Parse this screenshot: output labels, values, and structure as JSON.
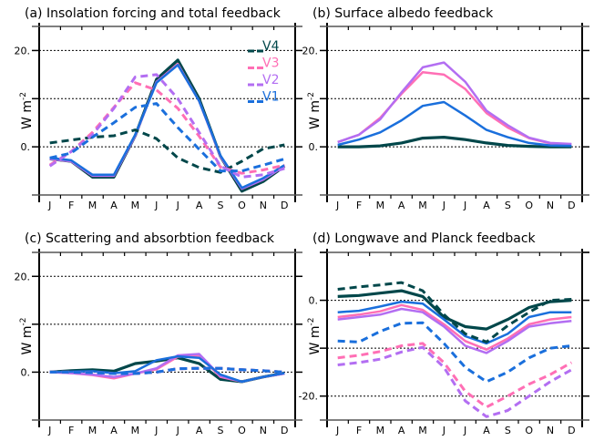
{
  "figure": {
    "months": [
      "J",
      "F",
      "M",
      "A",
      "M",
      "J",
      "J",
      "A",
      "S",
      "O",
      "N",
      "D"
    ],
    "ylabel": "W m",
    "ylabel_sup": "-2",
    "colors": {
      "V4": "#00474a",
      "V3": "#ff6fb5",
      "V2": "#b36ef2",
      "V1": "#1a6fdc"
    }
  },
  "chart_data": [
    {
      "type": "line",
      "panel": "a",
      "title": "(a) Insolation forcing and total feedback",
      "xlabel": "",
      "ylabel": "W m-2",
      "categories": [
        "J",
        "F",
        "M",
        "A",
        "M",
        "J",
        "J",
        "A",
        "S",
        "O",
        "N",
        "D"
      ],
      "ylim": [
        -10,
        25
      ],
      "yticks": [
        0,
        20
      ],
      "ytick_labels": [
        "0.",
        "20."
      ],
      "gridlines": [
        0,
        10,
        20
      ],
      "legend": {
        "placement": "top-right",
        "entries": [
          "V4",
          "V3",
          "V2",
          "V1"
        ]
      },
      "series": [
        {
          "name": "V4 solid",
          "legend": "V4",
          "style": "solid",
          "values": [
            -2.5,
            -3,
            -6.3,
            -6.3,
            2.3,
            14,
            18,
            10,
            -2,
            -9.2,
            -7.2,
            -4
          ]
        },
        {
          "name": "V3 solid",
          "legend": "V3",
          "style": "solid",
          "values": [
            -2.5,
            -3,
            -6,
            -6,
            2.3,
            13.5,
            17.2,
            9.5,
            -2,
            -8.7,
            -6.8,
            -4
          ]
        },
        {
          "name": "V2 solid",
          "legend": "V2",
          "style": "solid",
          "values": [
            -2.5,
            -3,
            -6,
            -6,
            2.3,
            13.5,
            17,
            9.5,
            -2,
            -8.7,
            -6.8,
            -4
          ]
        },
        {
          "name": "V1 solid",
          "legend": "V1",
          "style": "solid",
          "values": [
            -2.3,
            -2.8,
            -5.8,
            -5.8,
            2.5,
            13.3,
            17,
            9.5,
            -1.8,
            -8.5,
            -6.5,
            -3.8
          ]
        },
        {
          "name": "V4 dashed",
          "legend": "V4",
          "style": "dashed",
          "values": [
            0.8,
            1.4,
            2,
            2.3,
            3.5,
            1.7,
            -2.3,
            -4.3,
            -5.3,
            -3,
            -0.4,
            0.4
          ]
        },
        {
          "name": "V3 dashed",
          "legend": "V3",
          "style": "dashed",
          "values": [
            -3.8,
            -1,
            3,
            8.2,
            13.3,
            11.8,
            8,
            2.2,
            -4.2,
            -5.5,
            -4.8,
            -3.8
          ]
        },
        {
          "name": "V2 dashed",
          "legend": "V2",
          "style": "dashed",
          "values": [
            -4,
            -1,
            2.5,
            8,
            14.5,
            15,
            10,
            3,
            -4,
            -6.3,
            -5.8,
            -4.5
          ]
        },
        {
          "name": "V1 dashed",
          "legend": "V1",
          "style": "dashed",
          "values": [
            -2.3,
            -1.3,
            2,
            5,
            8.2,
            9,
            4,
            -0.5,
            -5,
            -5,
            -3.8,
            -2.5
          ]
        }
      ]
    },
    {
      "type": "line",
      "panel": "b",
      "title": "(b) Surface albedo feedback",
      "xlabel": "",
      "ylabel": "W m-2",
      "categories": [
        "J",
        "F",
        "M",
        "A",
        "M",
        "J",
        "J",
        "A",
        "S",
        "O",
        "N",
        "D"
      ],
      "ylim": [
        -10,
        25
      ],
      "yticks": [
        0,
        20
      ],
      "ytick_labels": [
        "0.",
        "20."
      ],
      "gridlines": [
        0,
        10,
        20
      ],
      "series": [
        {
          "name": "V4",
          "legend": "V4",
          "style": "solid",
          "values": [
            0,
            0,
            0.2,
            0.8,
            1.8,
            2,
            1.5,
            0.8,
            0.3,
            0.1,
            0,
            0
          ]
        },
        {
          "name": "V3",
          "legend": "V3",
          "style": "solid",
          "values": [
            1,
            2.5,
            6,
            11,
            15.5,
            15,
            12,
            7,
            4,
            1.8,
            0.7,
            0.5
          ]
        },
        {
          "name": "V2",
          "legend": "V2",
          "style": "solid",
          "values": [
            1,
            2.5,
            5.7,
            11.3,
            16.5,
            17.5,
            13.5,
            7.5,
            4.5,
            1.9,
            0.8,
            0.6
          ]
        },
        {
          "name": "V1",
          "legend": "V1",
          "style": "solid",
          "values": [
            0.4,
            1.5,
            3,
            5.5,
            8.5,
            9.3,
            6.5,
            3.5,
            2,
            0.8,
            0.3,
            0.2
          ]
        }
      ]
    },
    {
      "type": "line",
      "panel": "c",
      "title": "(c) Scattering and absorbtion feedback",
      "xlabel": "",
      "ylabel": "W m-2",
      "categories": [
        "J",
        "F",
        "M",
        "A",
        "M",
        "J",
        "J",
        "A",
        "S",
        "O",
        "N",
        "D"
      ],
      "ylim": [
        -10,
        25
      ],
      "yticks": [
        0,
        20
      ],
      "ytick_labels": [
        "0.",
        "20."
      ],
      "gridlines": [
        0,
        10,
        20
      ],
      "series": [
        {
          "name": "V4 solid",
          "legend": "V4",
          "style": "solid",
          "values": [
            0,
            0.3,
            0.5,
            0.2,
            1.8,
            2.3,
            3,
            1.8,
            -1.5,
            -2,
            -1,
            -0.2
          ]
        },
        {
          "name": "V3 solid",
          "legend": "V3",
          "style": "solid",
          "values": [
            0,
            -0.2,
            -0.6,
            -1.3,
            -0.3,
            0.6,
            3.2,
            3.5,
            -1,
            -2,
            -1,
            -0.3
          ]
        },
        {
          "name": "V2 solid",
          "legend": "V2",
          "style": "solid",
          "values": [
            0,
            -0.2,
            -0.5,
            -1,
            -0.3,
            0.8,
            3.5,
            3.8,
            -0.8,
            -2,
            -1,
            -0.3
          ]
        },
        {
          "name": "V1 solid",
          "legend": "V1",
          "style": "solid",
          "values": [
            0,
            0.1,
            0.2,
            -0.2,
            0.2,
            2.5,
            3.3,
            3,
            -0.5,
            -2,
            -1,
            -0.2
          ]
        },
        {
          "name": "V4 dashed",
          "legend": "V4",
          "style": "dashed",
          "values": [
            0,
            0,
            -0.1,
            -0.3,
            -0.3,
            0,
            0.7,
            0.8,
            0.8,
            0.5,
            0.3,
            0
          ]
        },
        {
          "name": "V3 dashed",
          "legend": "V3",
          "style": "dashed",
          "values": [
            0,
            0,
            -0.1,
            -0.3,
            -0.3,
            0,
            0.7,
            0.8,
            0.8,
            0.5,
            0.3,
            0
          ]
        },
        {
          "name": "V2 dashed",
          "legend": "V2",
          "style": "dashed",
          "values": [
            0,
            0,
            -0.1,
            -0.3,
            -0.3,
            0,
            0.7,
            0.8,
            0.8,
            0.5,
            0.3,
            0
          ]
        },
        {
          "name": "V1 dashed",
          "legend": "V1",
          "style": "dashed",
          "values": [
            0,
            0,
            -0.1,
            -0.3,
            -0.3,
            0,
            0.7,
            0.8,
            0.8,
            0.5,
            0.3,
            0
          ]
        }
      ]
    },
    {
      "type": "line",
      "panel": "d",
      "title": "(d) Longwave and Planck feedback",
      "xlabel": "",
      "ylabel": "W m-2",
      "categories": [
        "J",
        "F",
        "M",
        "A",
        "M",
        "J",
        "J",
        "A",
        "S",
        "O",
        "N",
        "D"
      ],
      "ylim": [
        -25,
        10
      ],
      "yticks": [
        0,
        -20
      ],
      "ytick_labels": [
        "0.",
        "-20."
      ],
      "gridlines": [
        10,
        0,
        -10,
        -20
      ],
      "series": [
        {
          "name": "V4 solid",
          "legend": "V4",
          "style": "solid",
          "values": [
            0.8,
            1,
            1.5,
            2,
            0.8,
            -3.5,
            -5.5,
            -6,
            -4,
            -1.5,
            -0.3,
            0
          ]
        },
        {
          "name": "V3 solid",
          "legend": "V3",
          "style": "solid",
          "values": [
            -3.5,
            -3,
            -2.3,
            -1,
            -2,
            -5,
            -8.5,
            -10.3,
            -8,
            -5,
            -4,
            -3.5
          ]
        },
        {
          "name": "V2 solid",
          "legend": "V2",
          "style": "solid",
          "values": [
            -4,
            -3.5,
            -3,
            -1.8,
            -2.5,
            -5.5,
            -9.5,
            -11,
            -8.5,
            -5.5,
            -4.8,
            -4.3
          ]
        },
        {
          "name": "V1 solid",
          "legend": "V1",
          "style": "solid",
          "values": [
            -2.5,
            -2.2,
            -1.3,
            -0.3,
            -0.7,
            -4,
            -7.5,
            -9,
            -7,
            -3.5,
            -2.5,
            -2.5
          ]
        },
        {
          "name": "V4 dashed",
          "legend": "V4",
          "style": "dashed",
          "values": [
            2.3,
            2.8,
            3.2,
            3.7,
            2,
            -3,
            -7,
            -8.7,
            -5.3,
            -2.5,
            0,
            0.2
          ]
        },
        {
          "name": "V3 dashed",
          "legend": "V3",
          "style": "dashed",
          "values": [
            -12,
            -11.5,
            -10.7,
            -9.5,
            -9,
            -13,
            -19,
            -22.3,
            -20,
            -17.5,
            -15.5,
            -13
          ]
        },
        {
          "name": "V2 dashed",
          "legend": "V2",
          "style": "dashed",
          "values": [
            -13.5,
            -13,
            -12.3,
            -10.8,
            -9.8,
            -14,
            -21,
            -24.3,
            -23,
            -20,
            -17,
            -14.5
          ]
        },
        {
          "name": "V1 dashed",
          "legend": "V1",
          "style": "dashed",
          "values": [
            -8.5,
            -8.7,
            -6.5,
            -4.8,
            -4.7,
            -9,
            -14,
            -17,
            -15,
            -12,
            -10,
            -9.5
          ]
        }
      ]
    }
  ]
}
